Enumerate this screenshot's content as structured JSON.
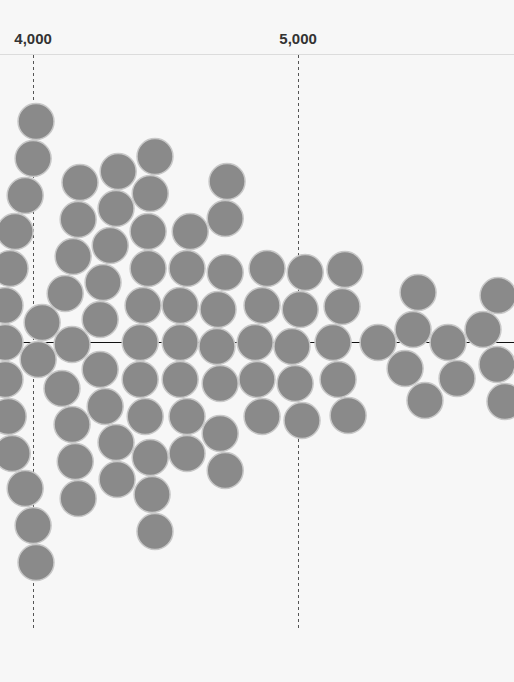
{
  "chart_data": {
    "type": "beeswarm",
    "x": [
      3894,
      3906,
      3913,
      3921,
      3932,
      3894,
      3894,
      3970,
      4000,
      4011,
      4019,
      4034,
      4000,
      4109,
      4121,
      4147,
      4151,
      4159,
      4170,
      4177,
      4253,
      4264,
      4272,
      4291,
      4313,
      4317,
      4321,
      4404,
      4415,
      4423,
      4434,
      4442,
      4449,
      4460,
      4555,
      4581,
      4581,
      4581,
      4593,
      4555,
      4694,
      4698,
      4706,
      4725,
      4725,
      4725,
      4732,
      4838,
      4845,
      4864,
      4864,
      4883,
      4977,
      4989,
      5008,
      5015,
      5027,
      5132,
      5151,
      5166,
      5177,
      5189,
      5302,
      5404,
      5434,
      5453,
      5479,
      5566,
      5600,
      5698,
      5751,
      5755,
      5781,
      4460,
      4404,
      4253,
      4170,
      4313,
      4147,
      4555,
      4706,
      4442,
      4434,
      3970,
      4011
    ],
    "xlim": [
      3875,
      5815
    ],
    "xticks": [
      {
        "value": 4000,
        "label": "4,000"
      },
      {
        "value": 5000,
        "label": "5,000"
      }
    ],
    "grid": true,
    "tick_labels": "x",
    "color": "#8a8a8a",
    "marker": "circle"
  }
}
